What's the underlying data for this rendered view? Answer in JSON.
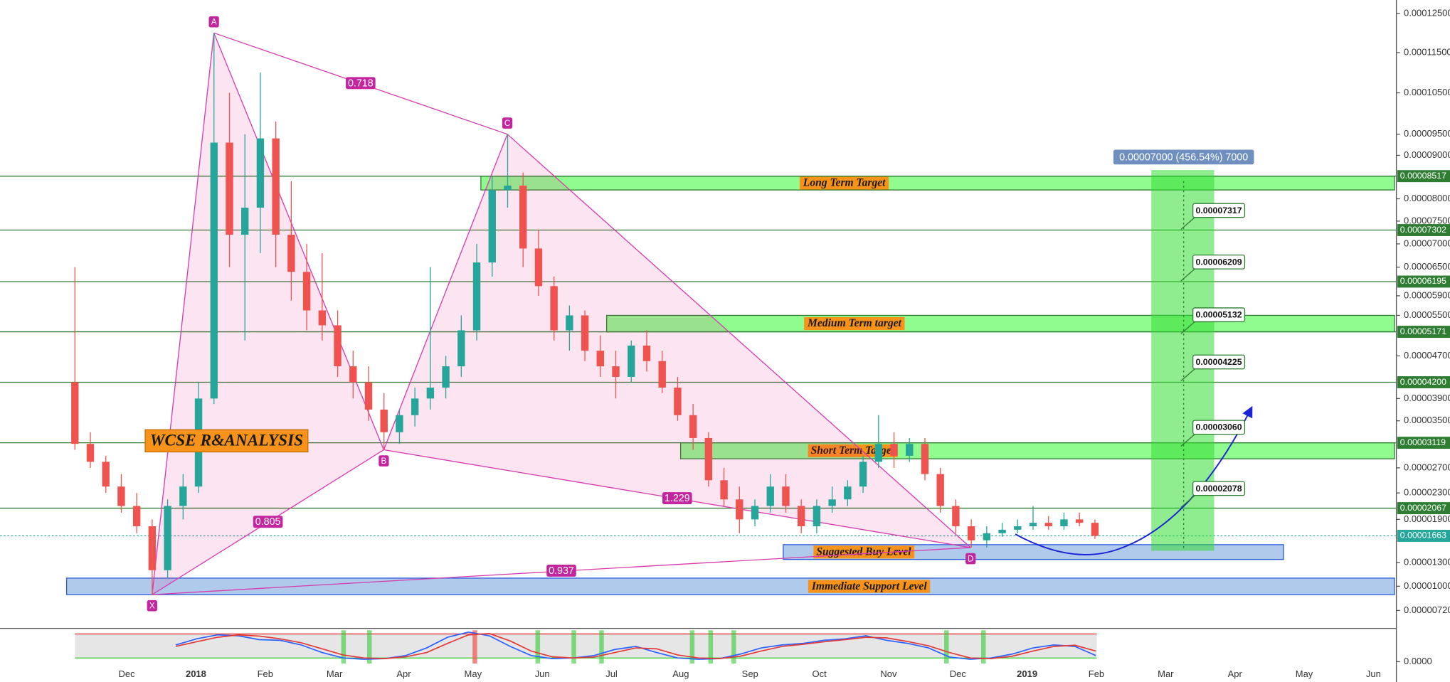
{
  "chart_data": [
    {
      "type": "candlestick",
      "open": [
        4.2e-05,
        3.1e-05,
        2.8e-05,
        2.4e-05,
        2.1e-05,
        1.8e-05,
        1.2e-05,
        2.1e-05,
        2.4e-05,
        3.9e-05,
        9.3e-05,
        7.2e-05,
        7.8e-05,
        9.4e-05,
        7.2e-05,
        6.4e-05,
        5.6e-05,
        5.3e-05,
        4.5e-05,
        4.2e-05,
        3.7e-05,
        3.3e-05,
        3.6e-05,
        3.9e-05,
        4.1e-05,
        4.5e-05,
        5.2e-05,
        6.6e-05,
        8.2e-05,
        8.3e-05,
        6.9e-05,
        6.1e-05,
        5.2e-05,
        5.5e-05,
        4.8e-05,
        4.5e-05,
        4.3e-05,
        4.9e-05,
        4.6e-05,
        4.1e-05,
        3.6e-05,
        3.2e-05,
        2.5e-05,
        2.2e-05,
        1.9e-05,
        2.1e-05,
        2.4e-05,
        2.1e-05,
        1.8e-05,
        2.1e-05,
        2.2e-05,
        2.4e-05,
        2.8e-05,
        3.1e-05,
        2.9e-05,
        3.1e-05,
        2.6e-05,
        2.1e-05,
        1.8e-05,
        1.6e-05,
        1.7e-05,
        1.75e-05,
        1.8e-05,
        1.85e-05,
        1.8e-05,
        1.9e-05,
        1.85e-05
      ],
      "high": [
        6.5e-05,
        3.3e-05,
        2.9e-05,
        2.6e-05,
        2.3e-05,
        1.9e-05,
        2.2e-05,
        2.6e-05,
        4.2e-05,
        0.00012,
        0.000105,
        9.5e-05,
        0.00011,
        9.8e-05,
        8.4e-05,
        7e-05,
        6.8e-05,
        5.6e-05,
        4.8e-05,
        4.5e-05,
        4e-05,
        3.7e-05,
        4.1e-05,
        6.5e-05,
        4.7e-05,
        5.5e-05,
        7e-05,
        8.5e-05,
        9.5e-05,
        8.6e-05,
        7.3e-05,
        6.3e-05,
        5.7e-05,
        5.6e-05,
        5.1e-05,
        4.8e-05,
        5e-05,
        5.2e-05,
        4.8e-05,
        4.3e-05,
        3.8e-05,
        3.3e-05,
        2.7e-05,
        2.4e-05,
        2.2e-05,
        2.6e-05,
        2.6e-05,
        2.2e-05,
        2.2e-05,
        2.4e-05,
        2.5e-05,
        2.9e-05,
        3.6e-05,
        3.3e-05,
        3.2e-05,
        3.2e-05,
        2.7e-05,
        2.2e-05,
        1.9e-05,
        1.8e-05,
        1.85e-05,
        1.9e-05,
        2.1e-05,
        1.95e-05,
        2e-05,
        2e-05,
        1.9e-05
      ],
      "low": [
        3e-05,
        2.7e-05,
        2.3e-05,
        2e-05,
        1.7e-05,
        9e-06,
        1.1e-05,
        1.9e-05,
        2.3e-05,
        3.8e-05,
        6.5e-05,
        5e-05,
        6.8e-05,
        6.5e-05,
        5.8e-05,
        5.2e-05,
        5e-05,
        4.3e-05,
        3.9e-05,
        3.5e-05,
        3e-05,
        3.1e-05,
        3.4e-05,
        3.7e-05,
        3.9e-05,
        4.3e-05,
        5e-05,
        6.3e-05,
        7.8e-05,
        6.5e-05,
        5.9e-05,
        5e-05,
        4.8e-05,
        4.6e-05,
        4.3e-05,
        3.9e-05,
        4.2e-05,
        4.4e-05,
        4e-05,
        3.5e-05,
        3e-05,
        2.4e-05,
        2.1e-05,
        1.7e-05,
        1.8e-05,
        2e-05,
        2e-05,
        1.7e-05,
        1.7e-05,
        2e-05,
        2.1e-05,
        2.3e-05,
        2.7e-05,
        2.7e-05,
        2.8e-05,
        2.5e-05,
        2e-05,
        1.7e-05,
        1.5e-05,
        1.5e-05,
        1.65e-05,
        1.7e-05,
        1.75e-05,
        1.75e-05,
        1.75e-05,
        1.8e-05,
        1.62e-05
      ],
      "close": [
        3.1e-05,
        2.8e-05,
        2.4e-05,
        2.1e-05,
        1.8e-05,
        1.2e-05,
        2.1e-05,
        2.4e-05,
        3.9e-05,
        9.3e-05,
        7.2e-05,
        7.8e-05,
        9.4e-05,
        7.2e-05,
        6.4e-05,
        5.6e-05,
        5.3e-05,
        4.5e-05,
        4.2e-05,
        3.7e-05,
        3.3e-05,
        3.6e-05,
        3.9e-05,
        4.1e-05,
        4.5e-05,
        5.2e-05,
        6.6e-05,
        8.2e-05,
        8.3e-05,
        6.9e-05,
        6.1e-05,
        5.2e-05,
        5.5e-05,
        4.8e-05,
        4.5e-05,
        4.3e-05,
        4.9e-05,
        4.6e-05,
        4.1e-05,
        3.6e-05,
        3.2e-05,
        2.5e-05,
        2.2e-05,
        1.9e-05,
        2.1e-05,
        2.4e-05,
        2.1e-05,
        1.8e-05,
        2.1e-05,
        2.2e-05,
        2.4e-05,
        2.8e-05,
        3.1e-05,
        2.9e-05,
        3.1e-05,
        2.6e-05,
        2.1e-05,
        1.8e-05,
        1.6e-05,
        1.7e-05,
        1.75e-05,
        1.8e-05,
        1.85e-05,
        1.8e-05,
        1.9e-05,
        1.85e-05,
        1.663e-05
      ],
      "up_color": "#26a69a",
      "down_color": "#ef5350",
      "ylim": [
        5.5e-06,
        0.0001285
      ],
      "yticks": [
        {
          "value": 0.000125,
          "label": "0.00012500"
        },
        {
          "value": 0.000115,
          "label": "0.00011500"
        },
        {
          "value": 0.000105,
          "label": "0.00010500"
        },
        {
          "value": 9.5e-05,
          "label": "0.00009500"
        },
        {
          "value": 9e-05,
          "label": "0.00009000"
        },
        {
          "value": 8e-05,
          "label": "0.00008000"
        },
        {
          "value": 7.5e-05,
          "label": "0.00007500"
        },
        {
          "value": 7e-05,
          "label": "0.00007000"
        },
        {
          "value": 6.5e-05,
          "label": "0.00006500"
        },
        {
          "value": 5.9e-05,
          "label": "0.00005900"
        },
        {
          "value": 5.5e-05,
          "label": "0.00005500"
        },
        {
          "value": 4.7e-05,
          "label": "0.00004700"
        },
        {
          "value": 3.9e-05,
          "label": "0.00003900"
        },
        {
          "value": 3.5e-05,
          "label": "0.00003500"
        },
        {
          "value": 2.7e-05,
          "label": "0.00002700"
        },
        {
          "value": 2.3e-05,
          "label": "0.00002300"
        },
        {
          "value": 1.9e-05,
          "label": "0.00001900"
        },
        {
          "value": 1.3e-05,
          "label": "0.00001300"
        },
        {
          "value": 1e-05,
          "label": "0.00001000"
        },
        {
          "value": 7.2e-06,
          "label": "0.00000720"
        }
      ],
      "xticks": [
        "Dec",
        "2018",
        "Feb",
        "Mar",
        "Apr",
        "May",
        "Jun",
        "Jul",
        "Aug",
        "Sep",
        "Oct",
        "Nov",
        "Dec",
        "2019",
        "Feb",
        "Mar",
        "Apr",
        "May",
        "Jun"
      ],
      "levels": [
        {
          "value": 8.517e-05,
          "label": "0.00008517",
          "color": "#2e7d32"
        },
        {
          "value": 7.302e-05,
          "label": "0.00007302",
          "color": "#2e7d32"
        },
        {
          "value": 6.195e-05,
          "label": "0.00006195",
          "color": "#2e7d32"
        },
        {
          "value": 5.171e-05,
          "label": "0.00005171",
          "color": "#2e7d32"
        },
        {
          "value": 4.2e-05,
          "label": "0.00004200",
          "color": "#2e7d32"
        },
        {
          "value": 3.119e-05,
          "label": "0.00003119",
          "color": "#2e7d32"
        },
        {
          "value": 2.067e-05,
          "label": "0.00002067",
          "color": "#2e7d32"
        },
        {
          "value": 1.663e-05,
          "label": "0.00001663",
          "color": "#26a69a"
        }
      ],
      "zones": [
        {
          "label": "Long Term Target",
          "top": 8.517e-05,
          "bottom": 8.2e-05,
          "color": "#7CFC7C"
        },
        {
          "label": "Medium Term target",
          "top": 5.5e-05,
          "bottom": 5.171e-05,
          "color": "#7CFC7C"
        },
        {
          "label": "Short Term Target",
          "top": 3.119e-05,
          "bottom": 2.85e-05,
          "color": "#7CFC7C"
        },
        {
          "label": "Suggested Buy Level",
          "top": 1.54e-05,
          "bottom": 1.34e-05,
          "color": "#8fb4e3"
        },
        {
          "label": "Immediate Support Level",
          "top": 1.1e-05,
          "bottom": 9e-06,
          "color": "#8fb4e3"
        }
      ],
      "pattern": [
        {
          "label": "X",
          "value": 9e-06
        },
        {
          "label": "A",
          "value": 0.00012
        },
        {
          "label": "B",
          "value": 3e-05
        },
        {
          "label": "C",
          "value": 9.5e-05
        },
        {
          "label": "D",
          "value": 1.5e-05
        }
      ],
      "ratios": [
        0.718,
        0.805,
        1.229,
        0.937
      ],
      "targets": [
        {
          "value": 7.317e-05,
          "label": "0.00007317"
        },
        {
          "value": 6.209e-05,
          "label": "0.00006209"
        },
        {
          "value": 5.132e-05,
          "label": "0.00005132"
        },
        {
          "value": 4.225e-05,
          "label": "0.00004225"
        },
        {
          "value": 3.06e-05,
          "label": "0.00003060"
        },
        {
          "value": 2.078e-05,
          "label": "0.00002078"
        }
      ],
      "projection_label": "0.00007000 (456.54%) 7000",
      "watermark": "WCSE R&ANALYSIS"
    },
    {
      "type": "line",
      "series": [
        {
          "color": "#2962ff",
          "values": [
            55,
            75,
            88,
            85,
            72,
            70,
            55,
            30,
            12,
            8,
            10,
            20,
            45,
            80,
            97,
            85,
            50,
            20,
            10,
            12,
            20,
            40,
            50,
            30,
            12,
            8,
            10,
            25,
            45,
            55,
            60,
            70,
            75,
            85,
            70,
            60,
            45,
            15,
            8,
            12,
            25,
            45,
            55,
            50,
            20
          ]
        },
        {
          "color": "#e53935",
          "values": [
            50,
            65,
            80,
            88,
            84,
            75,
            62,
            42,
            22,
            12,
            10,
            16,
            30,
            60,
            88,
            92,
            68,
            35,
            16,
            12,
            15,
            30,
            45,
            42,
            22,
            12,
            10,
            18,
            35,
            50,
            57,
            65,
            72,
            80,
            78,
            66,
            52,
            30,
            12,
            10,
            18,
            35,
            50,
            54,
            35
          ]
        }
      ],
      "ylim": [
        0,
        100
      ],
      "yticks": [
        {
          "value": 0,
          "label": "0.0000"
        }
      ]
    }
  ]
}
